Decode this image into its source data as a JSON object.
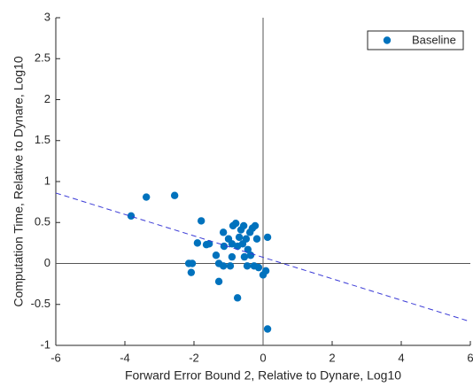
{
  "chart_data": {
    "type": "scatter",
    "xlabel": "Forward Error Bound 2, Relative to Dynare, Log10",
    "ylabel": "Computation Time, Relative to Dynare, Log10",
    "xlim": [
      -6,
      6
    ],
    "ylim": [
      -1,
      3
    ],
    "xticks": [
      -6,
      -4,
      -2,
      0,
      2,
      4,
      6
    ],
    "yticks": [
      -1,
      -0.5,
      0,
      0.5,
      1,
      1.5,
      2,
      2.5,
      3
    ],
    "legend": "top-right",
    "zero_lines": true,
    "series": [
      {
        "name": "Baseline",
        "color": "#0072bd",
        "x": [
          -3.82,
          -3.38,
          -2.56,
          -2.15,
          -2.05,
          -2.08,
          -1.79,
          -1.9,
          -1.64,
          -1.56,
          -1.36,
          -1.28,
          -1.28,
          -1.15,
          -1.15,
          -1.13,
          -1.0,
          -0.95,
          -0.9,
          -0.87,
          -0.79,
          -0.74,
          -0.69,
          -0.64,
          -0.59,
          -0.54,
          -0.56,
          -0.49,
          -0.44,
          -0.38,
          -0.31,
          -0.26,
          -0.36,
          -0.18,
          -0.13,
          -0.23,
          0,
          0.08,
          0.13,
          0.13,
          -0.9,
          -0.46,
          -0.74
        ],
        "values": [
          0.58,
          0.81,
          0.83,
          0,
          0,
          -0.11,
          0.52,
          0.25,
          0.23,
          0.24,
          0.1,
          0,
          -0.22,
          -0.03,
          0.38,
          0.21,
          0.3,
          -0.03,
          0.24,
          0.46,
          0.49,
          -0.42,
          0.32,
          0.41,
          0.24,
          0.08,
          0.46,
          0.3,
          0.17,
          0.38,
          0.43,
          -0.03,
          0.1,
          0.3,
          -0.05,
          0.46,
          -0.14,
          -0.09,
          0.32,
          -0.8,
          0.08,
          -0.03,
          0.21
        ]
      }
    ],
    "fit_line": {
      "x": [
        -6,
        6
      ],
      "values": [
        0.86,
        -0.71
      ],
      "color": "#3a3ad6",
      "dashed": true
    }
  }
}
